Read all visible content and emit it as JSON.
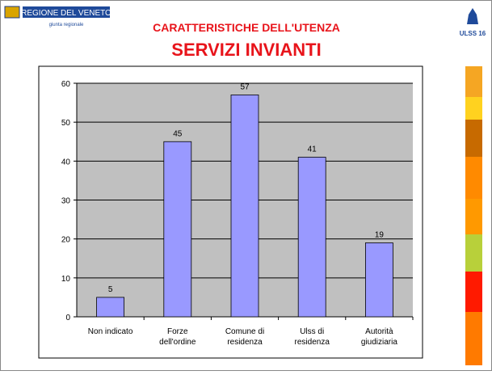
{
  "header": {
    "region_logo": "REGIONE DEL VENETO",
    "region_subtitle": "giunta regionale",
    "title_line1": "CARATTERISTICHE DELL'UTENZA",
    "title_line2": "SERVIZI INVIANTI",
    "ulss_logo": "ULSS 16"
  },
  "chart_data": {
    "type": "bar",
    "categories": [
      [
        "Non indicato"
      ],
      [
        "Forze",
        "dell'ordine"
      ],
      [
        "Comune di",
        "residenza"
      ],
      [
        "Ulss di",
        "residenza"
      ],
      [
        "Autorità",
        "giudiziaria"
      ]
    ],
    "values": [
      5,
      45,
      57,
      41,
      19
    ],
    "color": "#9999ff",
    "ylim": [
      0,
      60
    ],
    "yticks": [
      0,
      10,
      20,
      30,
      40,
      50,
      60
    ],
    "grid": true
  }
}
